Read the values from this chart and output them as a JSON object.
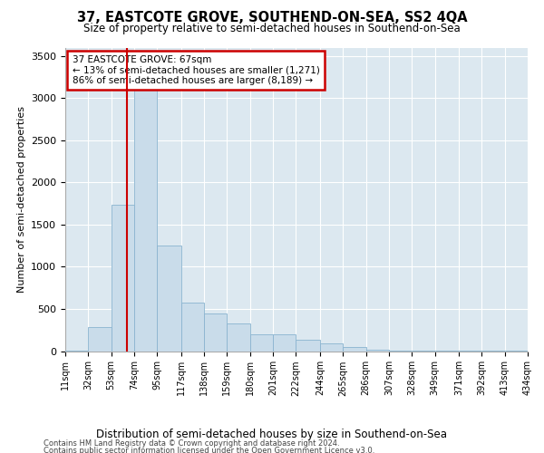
{
  "title": "37, EASTCOTE GROVE, SOUTHEND-ON-SEA, SS2 4QA",
  "subtitle": "Size of property relative to semi-detached houses in Southend-on-Sea",
  "xlabel": "Distribution of semi-detached houses by size in Southend-on-Sea",
  "ylabel": "Number of semi-detached properties",
  "footnote1": "Contains HM Land Registry data © Crown copyright and database right 2024.",
  "footnote2": "Contains public sector information licensed under the Open Government Licence v3.0.",
  "property_label": "37 EASTCOTE GROVE: 67sqm",
  "annotation_line1": "← 13% of semi-detached houses are smaller (1,271)",
  "annotation_line2": "86% of semi-detached houses are larger (8,189) →",
  "property_size": 67,
  "bin_edges": [
    11,
    32,
    53,
    74,
    95,
    117,
    138,
    159,
    180,
    201,
    222,
    244,
    265,
    286,
    307,
    328,
    349,
    371,
    392,
    413,
    434
  ],
  "bin_labels": [
    "11sqm",
    "32sqm",
    "53sqm",
    "74sqm",
    "95sqm",
    "117sqm",
    "138sqm",
    "159sqm",
    "180sqm",
    "201sqm",
    "222sqm",
    "244sqm",
    "265sqm",
    "286sqm",
    "307sqm",
    "328sqm",
    "349sqm",
    "371sqm",
    "392sqm",
    "413sqm",
    "434sqm"
  ],
  "bar_heights": [
    10,
    290,
    1740,
    3100,
    1250,
    580,
    450,
    330,
    195,
    195,
    130,
    90,
    50,
    20,
    8,
    5,
    3,
    1,
    1,
    1
  ],
  "bar_color": "#c9dcea",
  "bar_edge_color": "#8ab4d0",
  "line_color": "#cc0000",
  "annotation_box_edge_color": "#cc0000",
  "bg_color": "#dce8f0",
  "ylim": [
    0,
    3600
  ],
  "yticks": [
    0,
    500,
    1000,
    1500,
    2000,
    2500,
    3000,
    3500
  ]
}
